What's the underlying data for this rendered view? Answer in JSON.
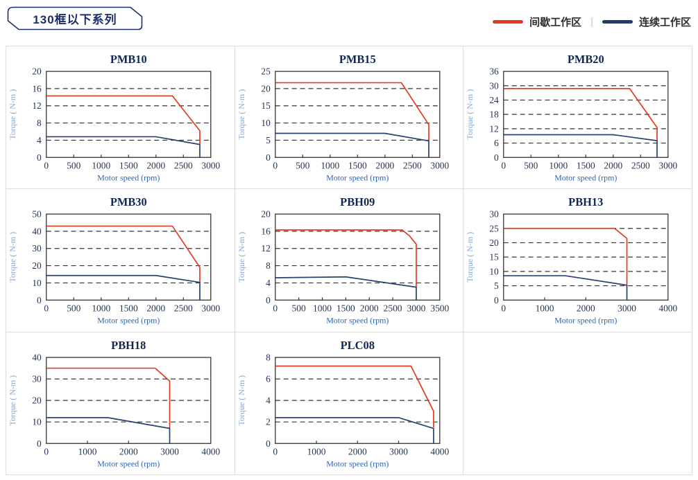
{
  "header": {
    "badge": "130框以下系列"
  },
  "legend": {
    "items": [
      {
        "label": "间歇工作区",
        "color": "#E23B1E"
      },
      {
        "label": "连续工作区",
        "color": "#1F3A6E"
      }
    ],
    "separator": "|"
  },
  "axis": {
    "x_label": "Motor speed (rpm)",
    "y_label": "Torque ( N-m )"
  },
  "colors": {
    "intermittent": "#E23B1E",
    "continuous": "#2A4070",
    "grid_border": "#DCDCDC",
    "tick_text": "#26334F",
    "title_text": "#132850",
    "x_label_text": "#2E64B5",
    "y_label_text": "#7FA7DB"
  },
  "chart_data": [
    {
      "type": "line",
      "title": "PMB10",
      "xlabel": "Motor speed (rpm)",
      "ylabel": "Torque ( N-m )",
      "xlim": [
        0,
        3000
      ],
      "ylim": [
        0,
        20
      ],
      "xticks": [
        0,
        500,
        1000,
        1500,
        2000,
        2500,
        3000
      ],
      "yticks": [
        0,
        4,
        8,
        12,
        16,
        20
      ],
      "series": [
        {
          "name": "间歇工作区",
          "color": "#E23B1E",
          "points": [
            [
              0,
              14.3
            ],
            [
              2300,
              14.3
            ],
            [
              2800,
              6.2
            ],
            [
              2800,
              3.0
            ]
          ]
        },
        {
          "name": "连续工作区",
          "color": "#2A4070",
          "points": [
            [
              0,
              4.8
            ],
            [
              2000,
              4.8
            ],
            [
              2800,
              3.0
            ],
            [
              2800,
              0
            ]
          ]
        }
      ]
    },
    {
      "type": "line",
      "title": "PMB15",
      "xlabel": "Motor speed (rpm)",
      "ylabel": "Torque ( N-m )",
      "xlim": [
        0,
        3000
      ],
      "ylim": [
        0,
        25
      ],
      "xticks": [
        0,
        500,
        1000,
        1500,
        2000,
        2500,
        3000
      ],
      "yticks": [
        0,
        5,
        10,
        15,
        20,
        25
      ],
      "series": [
        {
          "name": "间歇工作区",
          "color": "#E23B1E",
          "points": [
            [
              0,
              21.7
            ],
            [
              2300,
              21.7
            ],
            [
              2800,
              9.5
            ],
            [
              2800,
              4.8
            ]
          ]
        },
        {
          "name": "连续工作区",
          "color": "#2A4070",
          "points": [
            [
              0,
              7.0
            ],
            [
              2000,
              7.0
            ],
            [
              2800,
              4.8
            ],
            [
              2800,
              0
            ]
          ]
        }
      ]
    },
    {
      "type": "line",
      "title": "PMB20",
      "xlabel": "Motor speed (rpm)",
      "ylabel": "Torque ( N-m )",
      "xlim": [
        0,
        3000
      ],
      "ylim": [
        0,
        36
      ],
      "xticks": [
        0,
        500,
        1000,
        1500,
        2000,
        2500,
        3000
      ],
      "yticks": [
        0,
        6,
        12,
        18,
        24,
        30,
        36
      ],
      "series": [
        {
          "name": "间歇工作区",
          "color": "#E23B1E",
          "points": [
            [
              0,
              28.8
            ],
            [
              2300,
              28.8
            ],
            [
              2800,
              12.5
            ],
            [
              2800,
              7.0
            ]
          ]
        },
        {
          "name": "连续工作区",
          "color": "#2A4070",
          "points": [
            [
              0,
              9.5
            ],
            [
              2000,
              9.5
            ],
            [
              2800,
              7.0
            ],
            [
              2800,
              0
            ]
          ]
        }
      ]
    },
    {
      "type": "line",
      "title": "PMB30",
      "xlabel": "Motor speed (rpm)",
      "ylabel": "Torque ( N-m )",
      "xlim": [
        0,
        3000
      ],
      "ylim": [
        0,
        50
      ],
      "xticks": [
        0,
        500,
        1000,
        1500,
        2000,
        2500,
        3000
      ],
      "yticks": [
        0,
        10,
        20,
        30,
        40,
        50
      ],
      "series": [
        {
          "name": "间歇工作区",
          "color": "#E23B1E",
          "points": [
            [
              0,
              43
            ],
            [
              2300,
              43
            ],
            [
              2800,
              19
            ],
            [
              2800,
              10.3
            ]
          ]
        },
        {
          "name": "连续工作区",
          "color": "#2A4070",
          "points": [
            [
              0,
              14.3
            ],
            [
              2000,
              14.3
            ],
            [
              2800,
              10.3
            ],
            [
              2800,
              0
            ]
          ]
        }
      ]
    },
    {
      "type": "line",
      "title": "PBH09",
      "xlabel": "Motor speed (rpm)",
      "ylabel": "Torque ( N-m )",
      "xlim": [
        0,
        3500
      ],
      "ylim": [
        0,
        20
      ],
      "xticks": [
        0,
        500,
        1000,
        1500,
        2000,
        2500,
        3000,
        3500
      ],
      "yticks": [
        0,
        4,
        8,
        12,
        16,
        20
      ],
      "series": [
        {
          "name": "间歇工作区",
          "color": "#E23B1E",
          "points": [
            [
              0,
              16.3
            ],
            [
              2700,
              16.3
            ],
            [
              2850,
              15.0
            ],
            [
              3000,
              13.0
            ],
            [
              3000,
              3.0
            ]
          ]
        },
        {
          "name": "连续工作区",
          "color": "#2A4070",
          "points": [
            [
              0,
              5.2
            ],
            [
              1500,
              5.4
            ],
            [
              3000,
              3.0
            ],
            [
              3000,
              0
            ]
          ]
        }
      ]
    },
    {
      "type": "line",
      "title": "PBH13",
      "xlabel": "Motor speed (rpm)",
      "ylabel": "Torque ( N-m )",
      "xlim": [
        0,
        4000
      ],
      "ylim": [
        0,
        30
      ],
      "xticks": [
        0,
        1000,
        2000,
        3000,
        4000
      ],
      "yticks": [
        0,
        5,
        10,
        15,
        20,
        25,
        30
      ],
      "series": [
        {
          "name": "间歇工作区",
          "color": "#E23B1E",
          "points": [
            [
              0,
              25
            ],
            [
              2700,
              25
            ],
            [
              3000,
              21.5
            ],
            [
              3000,
              5.2
            ]
          ]
        },
        {
          "name": "连续工作区",
          "color": "#2A4070",
          "points": [
            [
              0,
              8.5
            ],
            [
              1500,
              8.5
            ],
            [
              3000,
              5.2
            ],
            [
              3000,
              0
            ]
          ]
        }
      ]
    },
    {
      "type": "line",
      "title": "PBH18",
      "xlabel": "Motor speed (rpm)",
      "ylabel": "Torque ( N-m )",
      "xlim": [
        0,
        4000
      ],
      "ylim": [
        0,
        40
      ],
      "xticks": [
        0,
        1000,
        2000,
        3000,
        4000
      ],
      "yticks": [
        0,
        10,
        20,
        30,
        40
      ],
      "series": [
        {
          "name": "间歇工作区",
          "color": "#E23B1E",
          "points": [
            [
              0,
              35
            ],
            [
              2650,
              35
            ],
            [
              3000,
              29
            ],
            [
              3000,
              7.0
            ]
          ]
        },
        {
          "name": "连续工作区",
          "color": "#2A4070",
          "points": [
            [
              0,
              12
            ],
            [
              1500,
              12
            ],
            [
              3000,
              7.0
            ],
            [
              3000,
              0
            ]
          ]
        }
      ]
    },
    {
      "type": "line",
      "title": "PLC08",
      "xlabel": "Motor speed (rpm)",
      "ylabel": "Torque ( N-m )",
      "xlim": [
        0,
        4000
      ],
      "ylim": [
        0,
        8
      ],
      "xticks": [
        0,
        1000,
        2000,
        3000,
        4000
      ],
      "yticks": [
        0,
        2,
        4,
        6,
        8
      ],
      "series": [
        {
          "name": "间歇工作区",
          "color": "#E23B1E",
          "points": [
            [
              0,
              7.2
            ],
            [
              3300,
              7.2
            ],
            [
              3850,
              3.0
            ],
            [
              3850,
              1.5
            ]
          ]
        },
        {
          "name": "连续工作区",
          "color": "#2A4070",
          "points": [
            [
              0,
              2.4
            ],
            [
              3000,
              2.4
            ],
            [
              3850,
              1.4
            ],
            [
              3850,
              0
            ]
          ]
        }
      ]
    }
  ]
}
